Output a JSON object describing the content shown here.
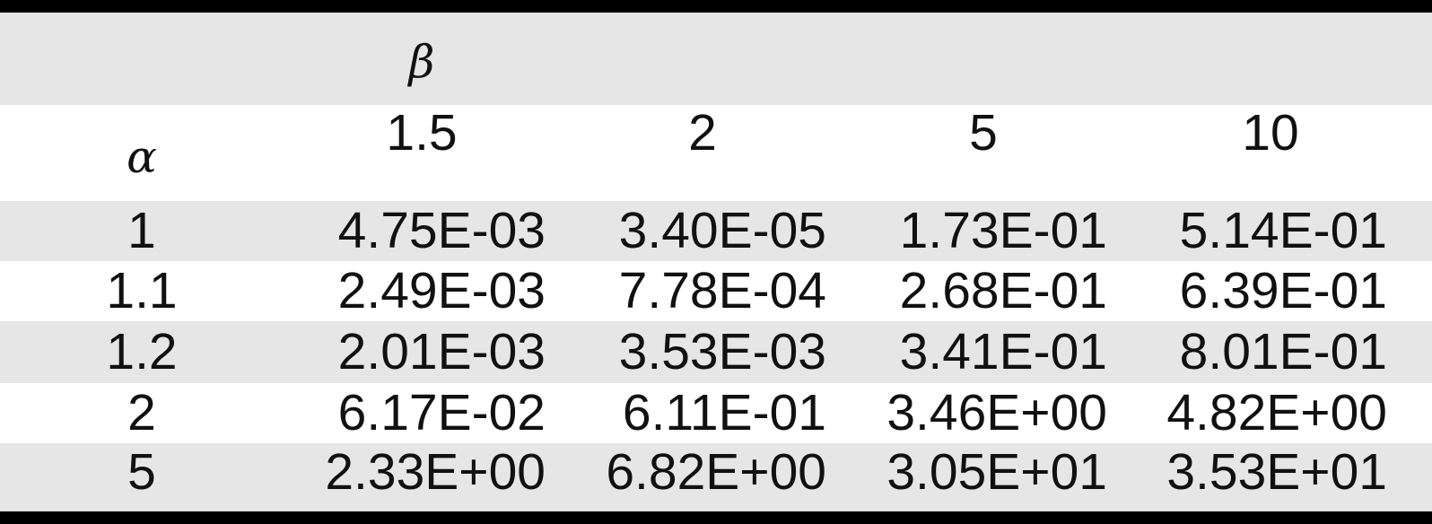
{
  "table": {
    "beta_symbol": "β",
    "alpha_symbol": "α",
    "beta_values": [
      "1.5",
      "2",
      "5",
      "10"
    ],
    "rows": [
      {
        "alpha": "1",
        "values": [
          "4.75E-03",
          "3.40E-05",
          "1.73E-01",
          "5.14E-01"
        ]
      },
      {
        "alpha": "1.1",
        "values": [
          "2.49E-03",
          "7.78E-04",
          "2.68E-01",
          "6.39E-01"
        ]
      },
      {
        "alpha": "1.2",
        "values": [
          "2.01E-03",
          "3.53E-03",
          "3.41E-01",
          "8.01E-01"
        ]
      },
      {
        "alpha": "2",
        "values": [
          "6.17E-02",
          "6.11E-01",
          "3.46E+00",
          "4.82E+00"
        ]
      },
      {
        "alpha": "5",
        "values": [
          "2.33E+00",
          "6.82E+00",
          "3.05E+01",
          "3.53E+01"
        ]
      }
    ]
  }
}
